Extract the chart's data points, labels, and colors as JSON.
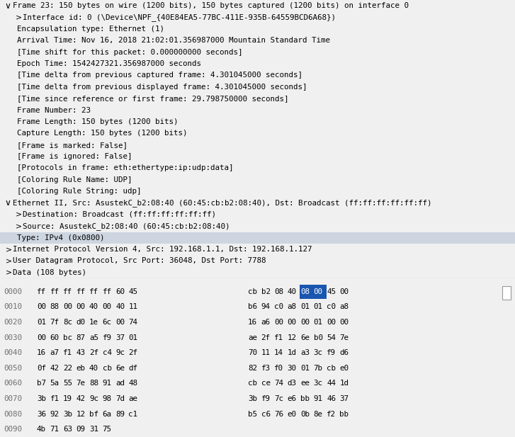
{
  "bg_color": "#f0f0f0",
  "tree_bg": "#ffffff",
  "hex_bg": "#ffffff",
  "sep_color": "#c8c8c8",
  "blue_highlight": "#1a56b0",
  "row_highlight": "#cdd5e0",
  "font_size": 7.8,
  "hex_font_size": 7.8,
  "tree_lines": [
    {
      "indent": 0,
      "arrow": "down",
      "text": "Frame 23: 150 bytes on wire (1200 bits), 150 bytes captured (1200 bits) on interface 0"
    },
    {
      "indent": 1,
      "arrow": "right",
      "text": "Interface id: 0 (\\Device\\NPF_{40E84EA5-77BC-411E-935B-64559BCD6A68})"
    },
    {
      "indent": 1,
      "arrow": "none",
      "text": "Encapsulation type: Ethernet (1)"
    },
    {
      "indent": 1,
      "arrow": "none",
      "text": "Arrival Time: Nov 16, 2018 21:02:01.356987000 Mountain Standard Time"
    },
    {
      "indent": 1,
      "arrow": "none",
      "text": "[Time shift for this packet: 0.000000000 seconds]"
    },
    {
      "indent": 1,
      "arrow": "none",
      "text": "Epoch Time: 1542427321.356987000 seconds"
    },
    {
      "indent": 1,
      "arrow": "none",
      "text": "[Time delta from previous captured frame: 4.301045000 seconds]"
    },
    {
      "indent": 1,
      "arrow": "none",
      "text": "[Time delta from previous displayed frame: 4.301045000 seconds]"
    },
    {
      "indent": 1,
      "arrow": "none",
      "text": "[Time since reference or first frame: 29.798750000 seconds]"
    },
    {
      "indent": 1,
      "arrow": "none",
      "text": "Frame Number: 23"
    },
    {
      "indent": 1,
      "arrow": "none",
      "text": "Frame Length: 150 bytes (1200 bits)"
    },
    {
      "indent": 1,
      "arrow": "none",
      "text": "Capture Length: 150 bytes (1200 bits)"
    },
    {
      "indent": 1,
      "arrow": "none",
      "text": "[Frame is marked: False]"
    },
    {
      "indent": 1,
      "arrow": "none",
      "text": "[Frame is ignored: False]"
    },
    {
      "indent": 1,
      "arrow": "none",
      "text": "[Protocols in frame: eth:ethertype:ip:udp:data]"
    },
    {
      "indent": 1,
      "arrow": "none",
      "text": "[Coloring Rule Name: UDP]"
    },
    {
      "indent": 1,
      "arrow": "none",
      "text": "[Coloring Rule String: udp]"
    },
    {
      "indent": 0,
      "arrow": "down",
      "text": "Ethernet II, Src: AsustekC_b2:08:40 (60:45:cb:b2:08:40), Dst: Broadcast (ff:ff:ff:ff:ff:ff)"
    },
    {
      "indent": 1,
      "arrow": "right",
      "text": "Destination: Broadcast (ff:ff:ff:ff:ff:ff)"
    },
    {
      "indent": 1,
      "arrow": "right",
      "text": "Source: AsustekC_b2:08:40 (60:45:cb:b2:08:40)"
    },
    {
      "indent": 1,
      "arrow": "none",
      "text": "Type: IPv4 (0x0800)",
      "highlight": true
    },
    {
      "indent": 0,
      "arrow": "right",
      "text": "Internet Protocol Version 4, Src: 192.168.1.1, Dst: 192.168.1.127"
    },
    {
      "indent": 0,
      "arrow": "right",
      "text": "User Datagram Protocol, Src Port: 36048, Dst Port: 7788"
    },
    {
      "indent": 0,
      "arrow": "right",
      "text": "Data (108 bytes)"
    }
  ],
  "hex_rows": [
    {
      "offset": "0000",
      "bytes": [
        "ff",
        "ff",
        "ff",
        "ff",
        "ff",
        "ff",
        "60",
        "45",
        "cb",
        "b2",
        "08",
        "40",
        "08",
        "00",
        "45",
        "00"
      ],
      "hl": [
        12,
        13
      ]
    },
    {
      "offset": "0010",
      "bytes": [
        "00",
        "88",
        "00",
        "00",
        "40",
        "00",
        "40",
        "11",
        "b6",
        "94",
        "c0",
        "a8",
        "01",
        "01",
        "c0",
        "a8"
      ],
      "hl": []
    },
    {
      "offset": "0020",
      "bytes": [
        "01",
        "7f",
        "8c",
        "d0",
        "1e",
        "6c",
        "00",
        "74",
        "16",
        "a6",
        "00",
        "00",
        "00",
        "01",
        "00",
        "00"
      ],
      "hl": []
    },
    {
      "offset": "0030",
      "bytes": [
        "00",
        "60",
        "bc",
        "87",
        "a5",
        "f9",
        "37",
        "01",
        "ae",
        "2f",
        "f1",
        "12",
        "6e",
        "b0",
        "54",
        "7e"
      ],
      "hl": []
    },
    {
      "offset": "0040",
      "bytes": [
        "16",
        "a7",
        "f1",
        "43",
        "2f",
        "c4",
        "9c",
        "2f",
        "70",
        "11",
        "14",
        "1d",
        "a3",
        "3c",
        "f9",
        "d6"
      ],
      "hl": []
    },
    {
      "offset": "0050",
      "bytes": [
        "0f",
        "42",
        "22",
        "eb",
        "40",
        "cb",
        "6e",
        "df",
        "82",
        "f3",
        "f0",
        "30",
        "01",
        "7b",
        "cb",
        "e0"
      ],
      "hl": []
    },
    {
      "offset": "0060",
      "bytes": [
        "b7",
        "5a",
        "55",
        "7e",
        "88",
        "91",
        "ad",
        "48",
        "cb",
        "ce",
        "74",
        "d3",
        "ee",
        "3c",
        "44",
        "1d"
      ],
      "hl": []
    },
    {
      "offset": "0070",
      "bytes": [
        "3b",
        "f1",
        "19",
        "42",
        "9c",
        "98",
        "7d",
        "ae",
        "3b",
        "f9",
        "7c",
        "e6",
        "bb",
        "91",
        "46",
        "37"
      ],
      "hl": []
    },
    {
      "offset": "0080",
      "bytes": [
        "36",
        "92",
        "3b",
        "12",
        "bf",
        "6a",
        "89",
        "c1",
        "b5",
        "c6",
        "76",
        "e0",
        "0b",
        "8e",
        "f2",
        "bb"
      ],
      "hl": []
    },
    {
      "offset": "0090",
      "bytes": [
        "4b",
        "71",
        "63",
        "09",
        "31",
        "75"
      ],
      "hl": []
    }
  ]
}
